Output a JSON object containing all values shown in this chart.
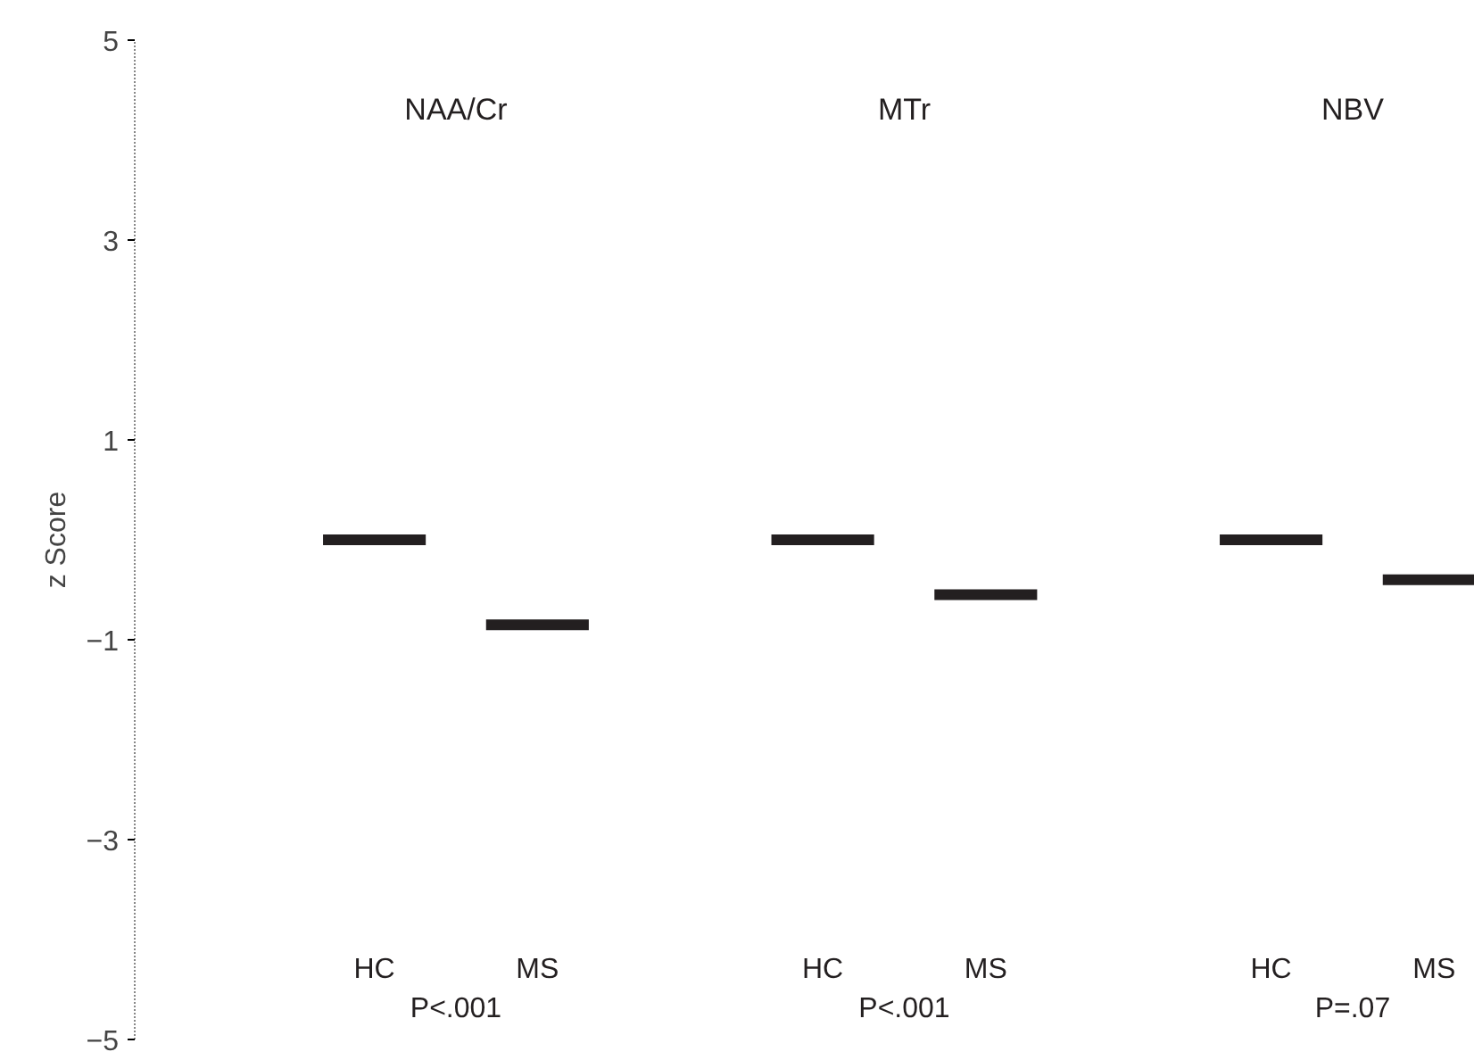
{
  "chart_data": {
    "type": "bar",
    "ylabel": "z Score",
    "categories": [
      "HC",
      "MS",
      "HC",
      "MS",
      "HC",
      "MS"
    ],
    "base": [
      0.0,
      -0.85,
      0.0,
      -0.55,
      0.0,
      -0.4
    ],
    "values": [
      0,
      0,
      0,
      0,
      0,
      0
    ],
    "color": "#231f20",
    "ylim": [
      -5,
      5
    ],
    "yticks": [
      -5,
      -3,
      -1,
      1,
      3,
      5
    ],
    "grid": false,
    "annotations": [
      "NAA/Cr",
      "MTr",
      "NBV",
      "P<.001",
      "P<.001",
      "P=.07"
    ]
  }
}
